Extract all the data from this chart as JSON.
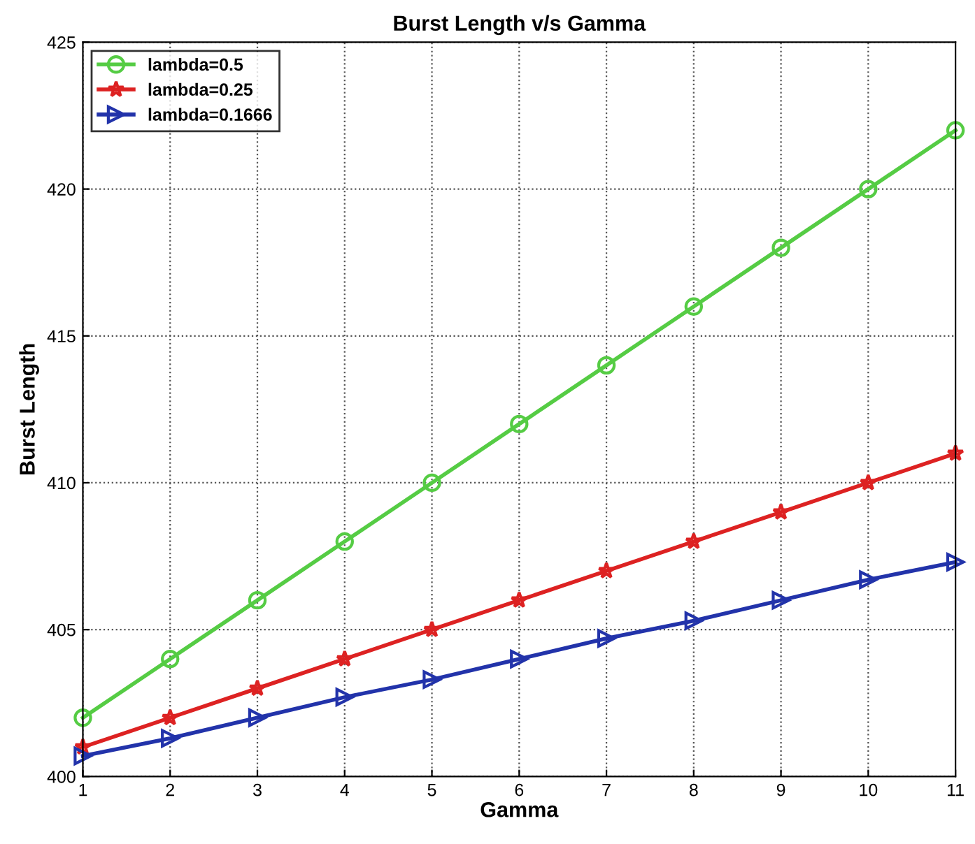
{
  "chart_data": {
    "type": "line",
    "title": "Burst Length v/s Gamma",
    "xlabel": "Gamma",
    "ylabel": "Burst Length",
    "x": [
      1,
      2,
      3,
      4,
      5,
      6,
      7,
      8,
      9,
      10,
      11
    ],
    "series": [
      {
        "name": "lambda=0.5",
        "color": "#55cc44",
        "marker": "circle",
        "values": [
          402,
          404,
          406,
          408,
          410,
          412,
          414,
          416,
          418,
          420,
          422
        ]
      },
      {
        "name": "lambda=0.25",
        "color": "#dd2222",
        "marker": "star",
        "values": [
          401,
          402,
          403,
          404,
          405,
          406,
          407,
          408,
          409,
          410,
          411
        ]
      },
      {
        "name": "lambda=0.1666",
        "color": "#2233aa",
        "marker": "triangle",
        "values": [
          400.7,
          401.3,
          402,
          402.7,
          403.3,
          404,
          404.7,
          405.3,
          406,
          406.7,
          407.3
        ]
      }
    ],
    "xlim": [
      1,
      11
    ],
    "xticks": [
      1,
      2,
      3,
      4,
      5,
      6,
      7,
      8,
      9,
      10,
      11
    ],
    "ylim": [
      400,
      425
    ],
    "yticks": [
      400,
      405,
      410,
      415,
      420,
      425
    ],
    "grid": true,
    "legend": "top left",
    "line_style": "solid"
  }
}
